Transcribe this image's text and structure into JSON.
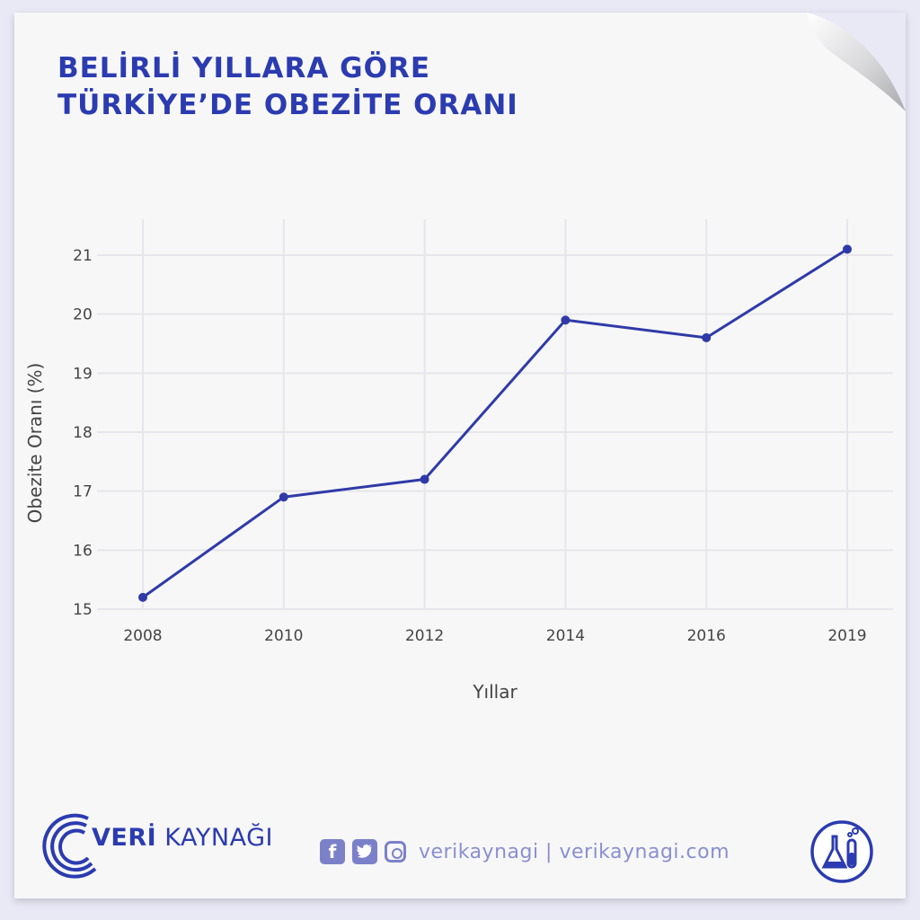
{
  "title": {
    "line1": "BELİRLİ YILLARA GÖRE",
    "line2": "TÜRKİYE’DE OBEZİTE ORANI"
  },
  "chart_data": {
    "type": "line",
    "categories": [
      "2008",
      "2010",
      "2012",
      "2014",
      "2016",
      "2019"
    ],
    "series": [
      {
        "values": [
          15.2,
          16.9,
          17.2,
          19.9,
          19.6,
          21.1
        ]
      }
    ],
    "xlabel": "Yıllar",
    "ylabel": "Obezite Oranı (%)",
    "ylim": [
      15,
      21
    ],
    "yticks": [
      15,
      16,
      17,
      18,
      19,
      20,
      21
    ],
    "grid": true,
    "color": "#2f3aa8"
  },
  "footer": {
    "brand_bold": "VERİ",
    "brand_light": "KAYNAĞI",
    "social_text": "verikaynagi | verikaynagi.com",
    "facebook_icon": "facebook-icon",
    "twitter_icon": "twitter-icon",
    "instagram_icon": "instagram-icon",
    "lab_icon": "lab-flask-icon",
    "accent_color": "#2b3bb0"
  }
}
